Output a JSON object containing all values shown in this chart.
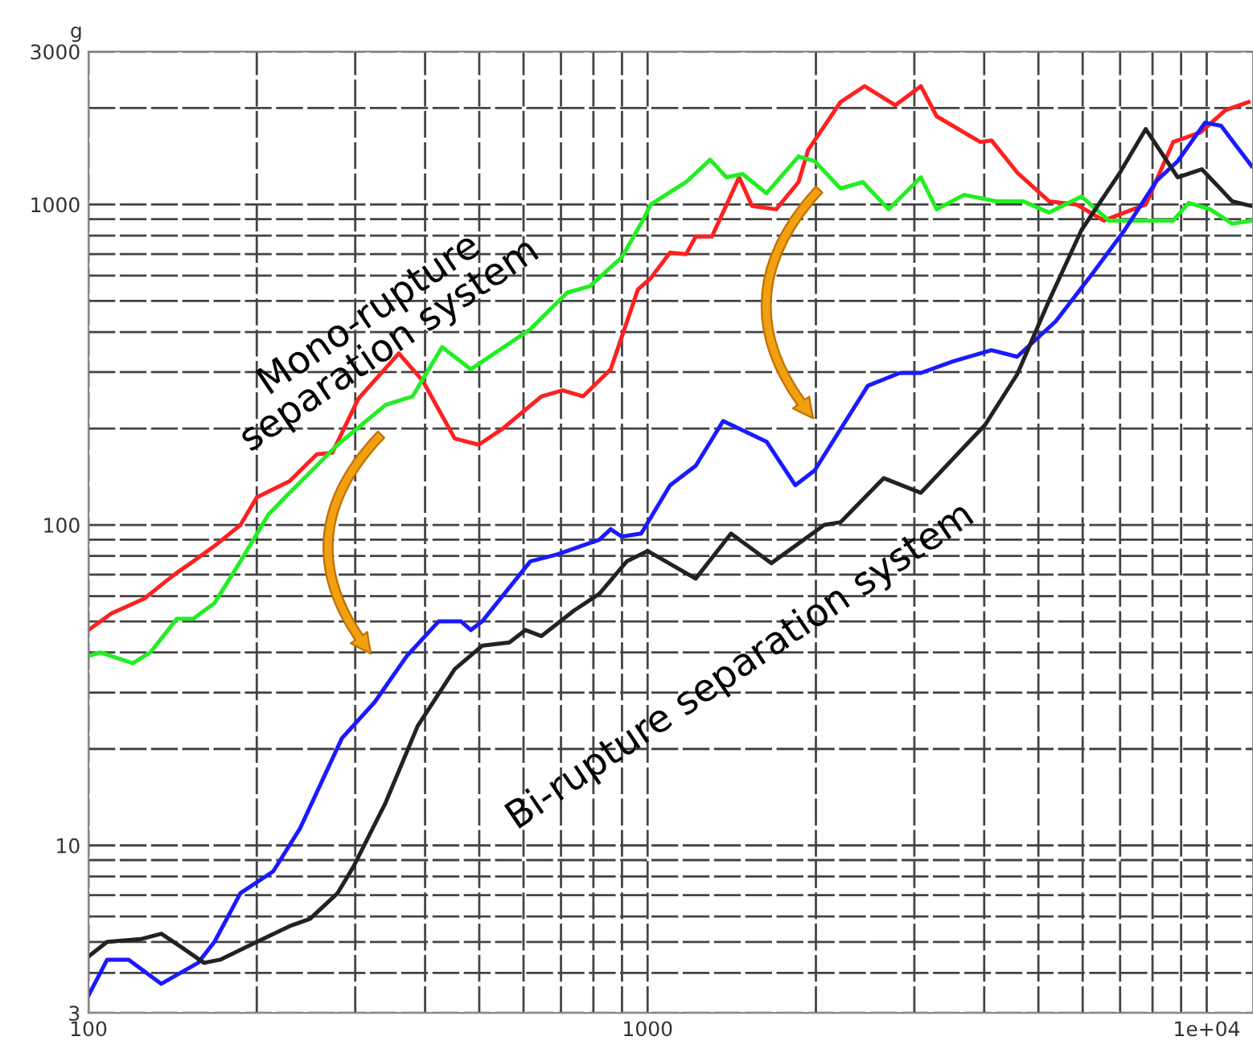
{
  "chart_data": {
    "type": "line",
    "ylabel": "g",
    "log": "xy",
    "grid": true,
    "legend": false,
    "marker": "none",
    "line_style": "solid",
    "xlim": [
      100,
      12100
    ],
    "ylim": [
      3,
      3000
    ],
    "xticks": [
      100,
      1000,
      {
        "value": 10000,
        "label": "1e+04"
      }
    ],
    "yticks": [
      3,
      10,
      100,
      1000,
      3000
    ],
    "annotations": [
      "Mono-rupture\nseparation system",
      "Bi-rupture separation system"
    ],
    "series": [
      {
        "color": "#ff2020",
        "x": [
          100,
          110,
          118,
          126,
          135,
          144,
          154,
          168,
          187,
          200,
          229,
          256,
          273,
          304,
          359,
          396,
          452,
          499,
          551,
          646,
          705,
          767,
          859,
          961,
          1013,
          1097,
          1172,
          1219,
          1303,
          1458,
          1538,
          1698,
          1862,
          1937,
          2213,
          2443,
          2773,
          3081,
          3289,
          3936,
          4121,
          4581,
          5224,
          5848,
          6547,
          7132,
          7780,
          8710,
          9750,
          10810,
          11880
        ],
        "values": [
          47,
          53,
          56,
          59,
          65,
          71,
          77,
          86,
          100,
          122,
          137,
          166,
          168,
          248,
          343,
          282,
          186,
          178,
          200,
          252,
          263,
          252,
          306,
          543,
          589,
          708,
          700,
          794,
          794,
          1216,
          989,
          966,
          1175,
          1479,
          2087,
          2340,
          2040,
          2340,
          1884,
          1567,
          1585,
          1259,
          1023,
          1000,
          891,
          944,
          1000,
          1567,
          1679,
          1972,
          2087
        ]
      },
      {
        "color": "#22ee22",
        "x": [
          100,
          105,
          120,
          129,
          144,
          154,
          168,
          187,
          210,
          229,
          279,
          340,
          380,
          429,
          483,
          617,
          718,
          788,
          899,
          980,
          1013,
          1172,
          1294,
          1383,
          1479,
          1632,
          1862,
          1990,
          2213,
          2427,
          2698,
          3081,
          3289,
          3681,
          4207,
          4699,
          5224,
          5970,
          6683,
          7780,
          8710,
          9290,
          10140,
          11110,
          12030
        ],
        "values": [
          39,
          40,
          37,
          40,
          51,
          51,
          57,
          77,
          108,
          126,
          178,
          237,
          252,
          359,
          306,
          408,
          531,
          556,
          684,
          891,
          1000,
          1175,
          1380,
          1216,
          1245,
          1084,
          1413,
          1365,
          1122,
          1175,
          966,
          1216,
          966,
          1072,
          1023,
          1023,
          944,
          1059,
          891,
          891,
          891,
          1012,
          966,
          871,
          891
        ]
      },
      {
        "color": "#1a1aff",
        "x": [
          100,
          108,
          118,
          135,
          157,
          168,
          187,
          214,
          239,
          284,
          325,
          371,
          423,
          464,
          483,
          506,
          617,
          690,
          820,
          859,
          899,
          974,
          1097,
          1219,
          1365,
          1632,
          1837,
          1990,
          2477,
          2825,
          3081,
          3516,
          4121,
          4581,
          5370,
          6252,
          7132,
          8147,
          8875,
          9930,
          10610,
          12030
        ],
        "values": [
          3.4,
          4.4,
          4.4,
          3.7,
          4.3,
          5.0,
          7.1,
          8.3,
          11.3,
          21.6,
          28,
          39,
          50,
          50,
          47,
          50,
          77,
          81,
          90,
          97,
          92,
          94,
          133,
          153,
          211,
          182,
          133,
          148,
          272,
          298,
          298,
          324,
          351,
          335,
          432,
          610,
          832,
          1189,
          1365,
          1800,
          1760,
          1318
        ]
      },
      {
        "color": "#222222",
        "x": [
          100,
          108,
          124,
          135,
          147,
          161,
          172,
          200,
          229,
          249,
          279,
          298,
          340,
          388,
          452,
          506,
          566,
          605,
          646,
          738,
          820,
          918,
          974,
          1000,
          1219,
          1410,
          1664,
          2070,
          2213,
          2645,
          3081,
          4012,
          4581,
          5224,
          5970,
          6998,
          7780,
          8875,
          9800,
          11110,
          12030
        ],
        "values": [
          4.5,
          5.0,
          5.1,
          5.3,
          4.8,
          4.3,
          4.4,
          5.0,
          5.6,
          5.9,
          7.1,
          8.6,
          13.6,
          23.6,
          35.5,
          42,
          43,
          47,
          45,
          54,
          61,
          77,
          81,
          83,
          68,
          94,
          76,
          100,
          102,
          140,
          126,
          205,
          295,
          501,
          832,
          1259,
          1720,
          1216,
          1288,
          1023,
          989
        ]
      }
    ]
  }
}
